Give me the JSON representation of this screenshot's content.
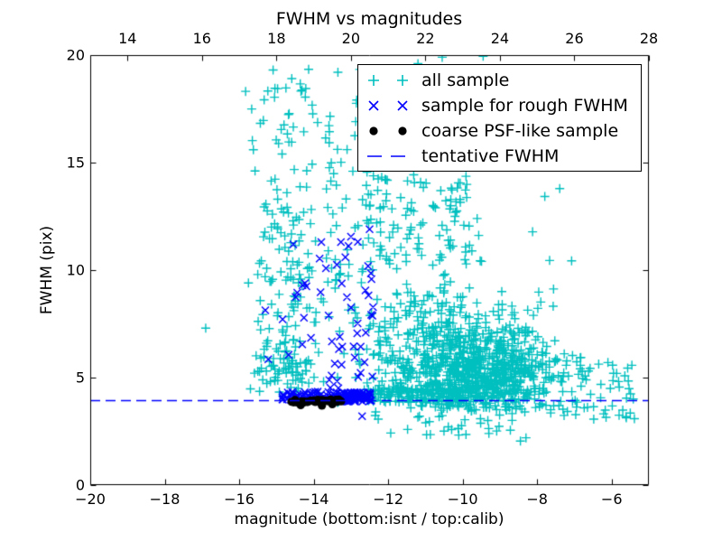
{
  "figure": {
    "background": "#ffffff",
    "axes_color": "#000000"
  },
  "chart_data": {
    "type": "scatter",
    "title": "FWHM vs magnitudes",
    "xlabel": "magnitude (bottom:isnt / top:calib)",
    "ylabel": "FWHM (pix)",
    "xlim": [
      -20,
      -5
    ],
    "ylim": [
      0,
      20
    ],
    "grid": false,
    "legend_position": "upper right inside",
    "x_axis_bottom": {
      "name": "isnt magnitude",
      "ticks": [
        {
          "v": -20,
          "label": "−20"
        },
        {
          "v": -18,
          "label": "−18"
        },
        {
          "v": -16,
          "label": "−16"
        },
        {
          "v": -14,
          "label": "−14"
        },
        {
          "v": -12,
          "label": "−12"
        },
        {
          "v": -10,
          "label": "−10"
        },
        {
          "v": -8,
          "label": "−8"
        },
        {
          "v": -6,
          "label": "−6"
        }
      ]
    },
    "x_axis_top": {
      "name": "calib magnitude",
      "offset_from_bottom": 33,
      "ticks": [
        {
          "v": 14,
          "label": "14"
        },
        {
          "v": 16,
          "label": "16"
        },
        {
          "v": 18,
          "label": "18"
        },
        {
          "v": 20,
          "label": "20"
        },
        {
          "v": 22,
          "label": "22"
        },
        {
          "v": 24,
          "label": "24"
        },
        {
          "v": 26,
          "label": "26"
        },
        {
          "v": 28,
          "label": "28"
        }
      ]
    },
    "y_axis": {
      "ticks": [
        {
          "v": 0,
          "label": "0"
        },
        {
          "v": 5,
          "label": "5"
        },
        {
          "v": 10,
          "label": "10"
        },
        {
          "v": 15,
          "label": "15"
        },
        {
          "v": 20,
          "label": "20"
        }
      ]
    },
    "series": [
      {
        "name": "all sample",
        "marker": "plus",
        "color": "#00bfbf",
        "clusters": [
          {
            "dist": "gauss",
            "n": 34,
            "cx": -14.8,
            "cy": 17.2,
            "sx": 0.5,
            "sy": 1.25,
            "ymin": 15.0,
            "ymax": 19.7
          },
          {
            "dist": "gauss",
            "n": 95,
            "cx": -14.78,
            "cy": 10.6,
            "sx": 0.42,
            "sy": 2.3,
            "ymin": 6.4,
            "ymax": 15.2
          },
          {
            "dist": "gauss",
            "n": 80,
            "cx": -14.72,
            "cy": 5.5,
            "sx": 0.4,
            "sy": 0.95,
            "ymin": 4.25,
            "ymax": 7.0
          },
          {
            "dist": "uniform",
            "n": 40,
            "x": [
              -14.25,
              -12.65
            ],
            "y": [
              4.6,
              12.0
            ]
          },
          {
            "dist": "uniform",
            "n": 36,
            "x": [
              -13.7,
              -12.45
            ],
            "y": [
              12.0,
              19.4
            ]
          },
          {
            "dist": "uniform",
            "n": 85,
            "x": [
              -12.6,
              -9.4
            ],
            "y": [
              10.2,
              14.45
            ]
          },
          {
            "dist": "uniform",
            "n": 28,
            "x": [
              -12.6,
              -11.3
            ],
            "y": [
              10.0,
              14.45
            ]
          },
          {
            "dist": "gauss",
            "n": 330,
            "cx": -9.55,
            "cy": 5.0,
            "sx": 0.72,
            "sy": 1.0,
            "ymin": 3.4
          },
          {
            "dist": "gauss",
            "n": 260,
            "cx": -10.35,
            "cy": 5.6,
            "sx": 1.0,
            "sy": 1.35,
            "ymin": 3.5
          },
          {
            "dist": "gauss",
            "n": 190,
            "cx": -11.1,
            "cy": 6.2,
            "sx": 0.95,
            "sy": 1.8,
            "ymin": 3.6,
            "ymax": 10.4
          },
          {
            "dist": "uniform",
            "n": 140,
            "x": [
              -12.6,
              -10.0
            ],
            "y": [
              3.85,
              4.5
            ]
          },
          {
            "dist": "gauss",
            "n": 120,
            "cx": -8.85,
            "cy": 6.2,
            "sx": 0.7,
            "sy": 1.5,
            "ymin": 3.5,
            "ymax": 9.6
          },
          {
            "dist": "gauss",
            "n": 120,
            "cx": -8.6,
            "cy": 4.9,
            "sx": 0.55,
            "sy": 0.8,
            "ymin": 3.3
          },
          {
            "dist": "uniform",
            "n": 45,
            "x": [
              -7.9,
              -6.5
            ],
            "y": [
              3.2,
              6.2
            ]
          },
          {
            "dist": "uniform",
            "n": 26,
            "x": [
              -6.6,
              -5.35
            ],
            "y": [
              3.0,
              5.9
            ]
          },
          {
            "dist": "uniform",
            "n": 34,
            "x": [
              -12.5,
              -8.2
            ],
            "y": [
              2.3,
              3.5
            ]
          },
          {
            "dist": "uniform",
            "n": 7,
            "x": [
              -8.25,
              -7.0
            ],
            "y": [
              8.2,
              14.2
            ]
          }
        ],
        "points": [
          [
            -16.9,
            7.3
          ],
          [
            -10.55,
            19.9
          ],
          [
            -9.45,
            19.95
          ],
          [
            -13.35,
            19.2
          ],
          [
            -15.62,
            15.6
          ],
          [
            -5.42,
            4.0
          ],
          [
            -5.5,
            3.35
          ],
          [
            -8.45,
            2.05
          ],
          [
            -8.3,
            2.2
          ],
          [
            -11.2,
            19.6
          ],
          [
            -6.1,
            5.7
          ],
          [
            -5.95,
            5.2
          ],
          [
            -6.15,
            3.15
          ],
          [
            -5.8,
            3.25
          ],
          [
            -7.57,
            8.32
          ]
        ]
      },
      {
        "name": "sample for rough FWHM",
        "marker": "x",
        "color": "#0000ff",
        "clusters": [
          {
            "dist": "uniform",
            "n": 120,
            "x": [
              -13.55,
              -12.45
            ],
            "y": [
              3.88,
              4.32
            ]
          },
          {
            "dist": "uniform",
            "n": 48,
            "x": [
              -14.85,
              -13.55
            ],
            "y": [
              3.9,
              4.35
            ]
          },
          {
            "dist": "uniform",
            "n": 26,
            "x": [
              -13.6,
              -12.4
            ],
            "y": [
              4.4,
              8.3
            ]
          },
          {
            "dist": "uniform",
            "n": 16,
            "x": [
              -13.95,
              -12.42
            ],
            "y": [
              8.3,
              11.9
            ]
          },
          {
            "dist": "uniform",
            "n": 10,
            "x": [
              -15.3,
              -13.9
            ],
            "y": [
              4.5,
              9.6
            ]
          }
        ],
        "points": [
          [
            -14.55,
            11.2
          ],
          [
            -13.0,
            11.55
          ],
          [
            -12.5,
            11.9
          ],
          [
            -12.7,
            3.2
          ],
          [
            -15.22,
            5.85
          ],
          [
            -14.3,
            9.3
          ]
        ]
      },
      {
        "name": "coarse PSF-like sample",
        "marker": "dot",
        "color": "#000000",
        "clusters": [
          {
            "dist": "uniform",
            "n": 30,
            "x": [
              -14.68,
              -13.26
            ],
            "y": [
              3.84,
              3.98
            ]
          }
        ],
        "points": [
          [
            -14.35,
            3.72
          ],
          [
            -13.78,
            3.7
          ],
          [
            -13.5,
            3.76
          ]
        ]
      },
      {
        "name": "tentative FWHM",
        "marker": "dash",
        "type": "hline",
        "color": "#0000ff",
        "linestyle": "dashed",
        "y": 3.93
      }
    ]
  }
}
